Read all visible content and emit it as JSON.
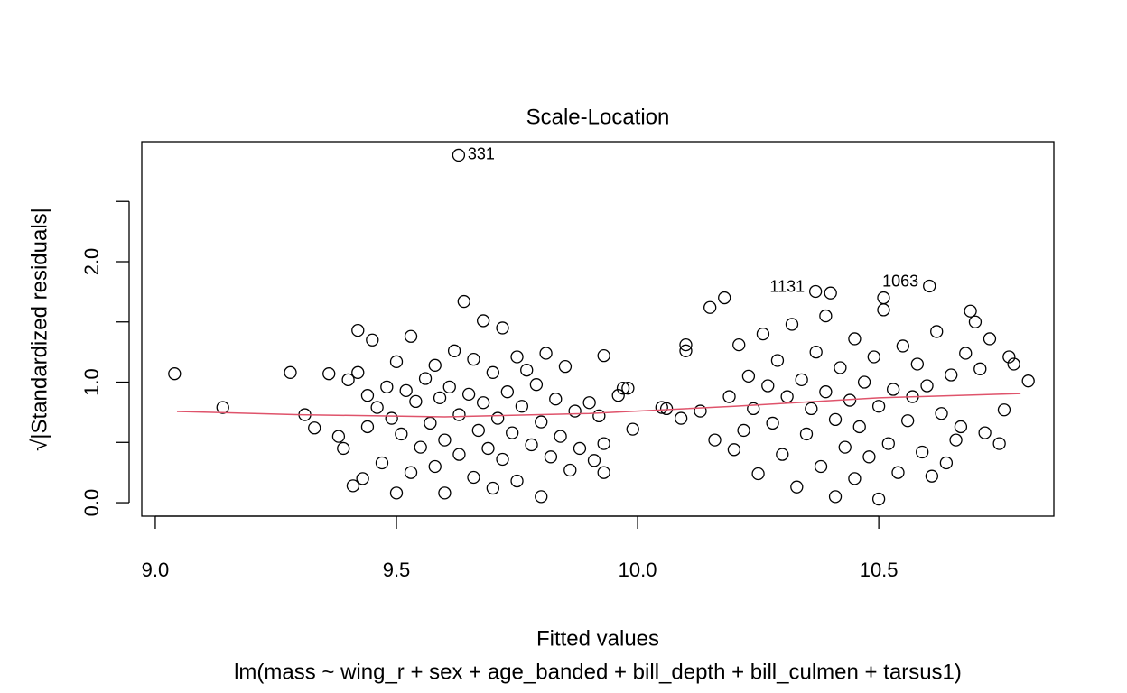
{
  "chart_data": {
    "type": "scatter",
    "title": "Scale-Location",
    "x_label": "Fitted values",
    "y_label": "√|Standardized residuals|",
    "subtitle": "lm(mass ~ wing_r + sex + age_banded + bill_depth + bill_culmen + tarsus1)",
    "xlim": [
      8.972,
      10.863
    ],
    "ylim": [
      -0.112,
      2.996
    ],
    "xticks": [
      {
        "value": 9,
        "label": "9.0"
      },
      9.5,
      {
        "value": 10,
        "label": "10.0"
      },
      10.5
    ],
    "yticks": [
      {
        "value": 0,
        "label": "0.0"
      },
      {
        "value": 1,
        "label": "1.0"
      },
      {
        "value": 2,
        "label": "2.0"
      }
    ],
    "yminor_ticks": [
      0.5,
      1.5,
      2.5
    ],
    "point_color": "#000000",
    "x": [
      9.04,
      9.14,
      9.28,
      9.31,
      9.33,
      9.36,
      9.38,
      9.39,
      9.4,
      9.41,
      9.42,
      9.42,
      9.43,
      9.44,
      9.44,
      9.45,
      9.46,
      9.47,
      9.48,
      9.49,
      9.5,
      9.5,
      9.51,
      9.52,
      9.53,
      9.53,
      9.54,
      9.55,
      9.56,
      9.57,
      9.58,
      9.58,
      9.59,
      9.6,
      9.6,
      9.61,
      9.62,
      9.63,
      9.63,
      9.64,
      9.65,
      9.66,
      9.66,
      9.67,
      9.68,
      9.68,
      9.69,
      9.7,
      9.7,
      9.71,
      9.72,
      9.72,
      9.73,
      9.74,
      9.75,
      9.75,
      9.76,
      9.77,
      9.78,
      9.79,
      9.8,
      9.8,
      9.81,
      9.82,
      9.83,
      9.84,
      9.85,
      9.86,
      9.87,
      9.88,
      9.9,
      9.91,
      9.92,
      9.93,
      9.93,
      9.93,
      9.96,
      9.97,
      9.98,
      9.99,
      10.05,
      10.06,
      10.09,
      10.1,
      10.1,
      10.13,
      10.15,
      10.16,
      10.18,
      10.19,
      10.2,
      10.21,
      10.22,
      10.23,
      10.24,
      10.25,
      10.26,
      10.27,
      10.28,
      10.29,
      10.3,
      10.31,
      10.32,
      10.33,
      10.34,
      10.35,
      10.36,
      10.37,
      10.38,
      10.39,
      10.39,
      10.4,
      10.41,
      10.41,
      10.42,
      10.43,
      10.44,
      10.45,
      10.45,
      10.46,
      10.47,
      10.48,
      10.49,
      10.5,
      10.5,
      10.51,
      10.51,
      10.52,
      10.53,
      10.54,
      10.55,
      10.56,
      10.57,
      10.58,
      10.59,
      10.6,
      10.61,
      10.62,
      10.63,
      10.64,
      10.65,
      10.66,
      10.67,
      10.68,
      10.69,
      10.7,
      10.71,
      10.72,
      10.73,
      10.75,
      10.76,
      10.77,
      10.78,
      10.81
    ],
    "y": [
      1.07,
      0.79,
      1.08,
      0.73,
      0.62,
      1.07,
      0.55,
      0.45,
      1.02,
      0.14,
      1.43,
      1.08,
      0.2,
      0.89,
      0.63,
      1.35,
      0.79,
      0.33,
      0.96,
      0.7,
      1.17,
      0.08,
      0.57,
      0.93,
      1.38,
      0.25,
      0.84,
      0.46,
      1.03,
      0.66,
      0.3,
      1.14,
      0.87,
      0.08,
      0.52,
      0.96,
      1.26,
      0.4,
      0.73,
      1.67,
      0.9,
      0.21,
      1.19,
      0.6,
      1.51,
      0.83,
      0.45,
      1.08,
      0.12,
      0.7,
      1.45,
      0.36,
      0.92,
      0.58,
      1.21,
      0.18,
      0.8,
      1.1,
      0.48,
      0.98,
      0.05,
      0.67,
      1.24,
      0.38,
      0.86,
      0.55,
      1.13,
      0.27,
      0.76,
      0.45,
      0.83,
      0.35,
      0.72,
      0.49,
      0.25,
      1.22,
      0.89,
      0.95,
      0.95,
      0.61,
      0.79,
      0.78,
      0.7,
      1.26,
      1.31,
      0.76,
      1.62,
      0.52,
      1.7,
      0.88,
      0.44,
      1.31,
      0.6,
      1.05,
      0.78,
      0.24,
      1.4,
      0.97,
      0.66,
      1.18,
      0.4,
      0.88,
      1.48,
      0.13,
      1.02,
      0.57,
      0.78,
      1.25,
      0.3,
      1.55,
      0.92,
      1.74,
      0.05,
      0.69,
      1.12,
      0.46,
      0.85,
      1.36,
      0.2,
      0.63,
      1.0,
      0.38,
      1.21,
      0.03,
      0.8,
      1.7,
      1.6,
      0.49,
      0.94,
      0.25,
      1.3,
      0.68,
      0.88,
      1.15,
      0.42,
      0.97,
      0.22,
      1.42,
      0.74,
      0.33,
      1.06,
      0.52,
      0.63,
      1.24,
      1.59,
      1.5,
      1.11,
      0.58,
      1.36,
      0.49,
      0.77,
      1.21,
      1.15,
      1.01
    ],
    "smooth": {
      "color": "#DF536B",
      "x": [
        9.045,
        9.3,
        9.6,
        9.9,
        10.2,
        10.5,
        10.794
      ],
      "y": [
        0.757,
        0.73,
        0.712,
        0.74,
        0.8,
        0.87,
        0.906
      ]
    },
    "annotations": [
      {
        "text": "331",
        "x": 9.629,
        "y": 2.884
      },
      {
        "text": "1131",
        "x": 10.369,
        "y": 1.753
      },
      {
        "text": "1063",
        "x": 10.605,
        "y": 1.798
      }
    ]
  }
}
